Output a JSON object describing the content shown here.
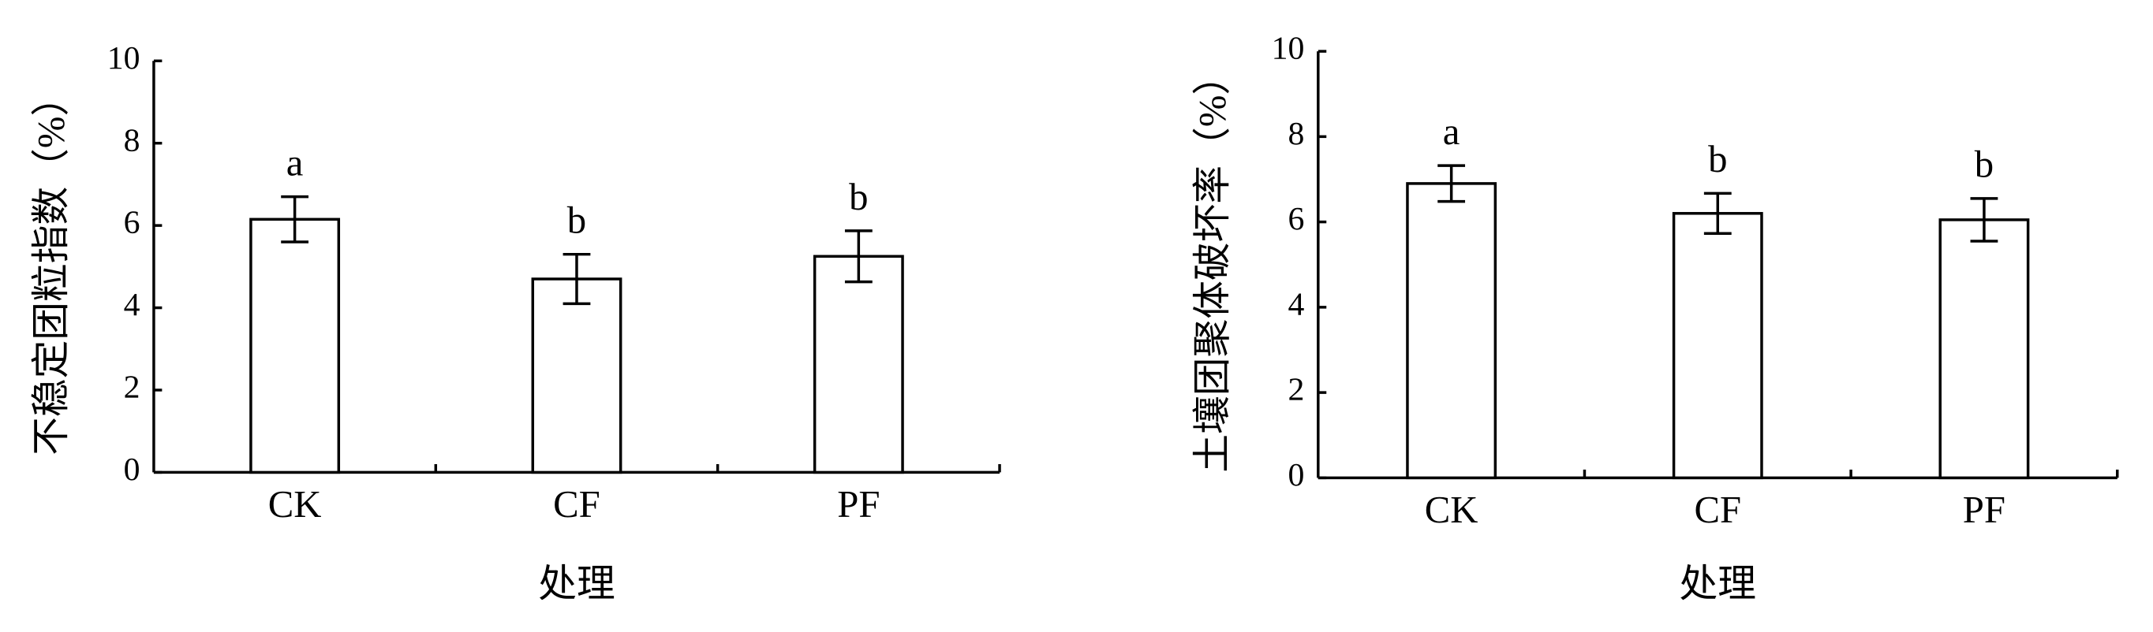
{
  "chart_data": [
    {
      "type": "bar",
      "y_label": "不稳定团粒指数（%）",
      "x_label": "处理",
      "categories": [
        "CK",
        "CF",
        "PF"
      ],
      "values": [
        6.15,
        4.7,
        5.25
      ],
      "errors": [
        0.55,
        0.6,
        0.62
      ],
      "significance_labels": [
        "a",
        "b",
        "b"
      ],
      "color": "#ffffff",
      "ylim": [
        0,
        10
      ],
      "yticks": [
        0,
        2,
        4,
        6,
        8,
        10
      ]
    },
    {
      "type": "bar",
      "y_label": "土壤团聚体破坏率（%）",
      "x_label": "处理",
      "categories": [
        "CK",
        "CF",
        "PF"
      ],
      "values": [
        6.9,
        6.2,
        6.05
      ],
      "errors": [
        0.42,
        0.47,
        0.5
      ],
      "significance_labels": [
        "a",
        "b",
        "b"
      ],
      "color": "#ffffff",
      "ylim": [
        0,
        10
      ],
      "yticks": [
        0,
        2,
        4,
        6,
        8,
        10
      ]
    }
  ]
}
